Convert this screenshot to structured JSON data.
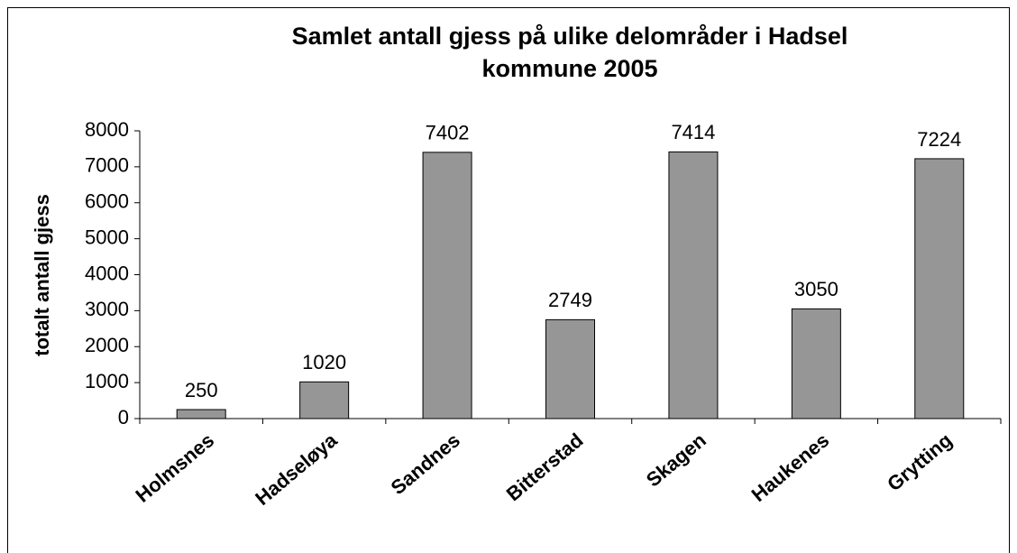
{
  "chart_data": {
    "type": "bar",
    "title": "Samlet antall gjess på ulike delområder i Hadsel kommune 2005",
    "y_label": "totalt antall gjess",
    "categories": [
      "Holmsnes",
      "Hadseløya",
      "Sandnes",
      "Bitterstad",
      "Skagen",
      "Haukenes",
      "Grytting"
    ],
    "values": [
      250,
      1020,
      7402,
      2749,
      7414,
      3050,
      7224
    ],
    "color": "#969696",
    "ylim": [
      0,
      8000
    ],
    "yticks": [
      0,
      1000,
      2000,
      3000,
      4000,
      5000,
      6000,
      7000,
      8000
    ],
    "grid": false
  }
}
